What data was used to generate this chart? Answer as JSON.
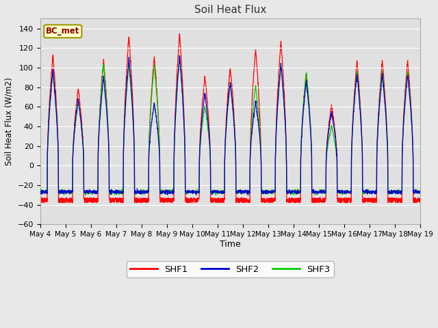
{
  "title": "Soil Heat Flux",
  "xlabel": "Time",
  "ylabel": "Soil Heat Flux (W/m2)",
  "ylim": [
    -60,
    150
  ],
  "yticks": [
    -60,
    -40,
    -20,
    0,
    20,
    40,
    60,
    80,
    100,
    120,
    140
  ],
  "outer_bg": "#e8e8e8",
  "plot_bg": "#e0e0e0",
  "grid_color": "#ffffff",
  "shf1_color": "#ff0000",
  "shf2_color": "#0000cc",
  "shf3_color": "#00cc00",
  "legend_label1": "SHF1",
  "legend_label2": "SHF2",
  "legend_label3": "SHF3",
  "station_label": "BC_met",
  "n_days": 15,
  "start_day": 4
}
